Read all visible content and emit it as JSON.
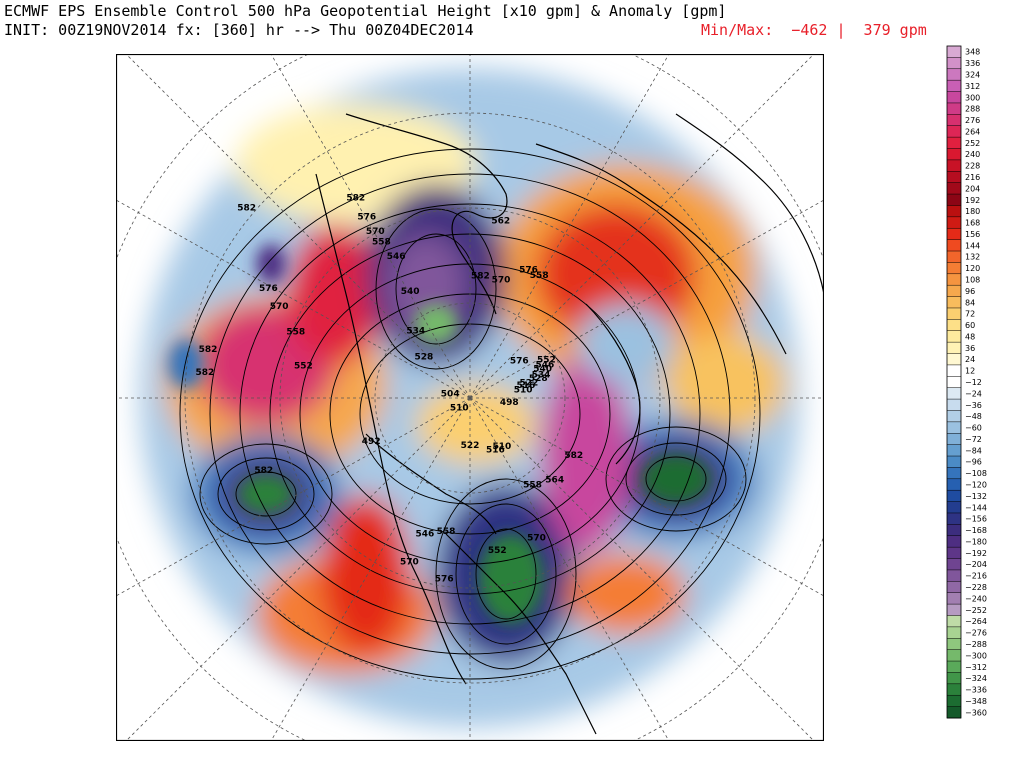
{
  "header": {
    "title_line1": "ECMWF EPS Ensemble Control 500 hPa Geopotential Height [x10 gpm] & Anomaly [gpm]",
    "title_line2": "INIT: 00Z19NOV2014 fx: [360] hr --> Thu 00Z04DEC2014",
    "minmax_label": "Min/Max:  −462 |  379 gpm"
  },
  "map": {
    "projection": "north-polar-stereographic",
    "contour_labels": [
      {
        "text": "576",
        "lat": 72,
        "lon": -125
      },
      {
        "text": "582",
        "lat": 55,
        "lon": -175
      },
      {
        "text": "570",
        "lat": 55,
        "lon": -165
      },
      {
        "text": "576",
        "lat": 50,
        "lon": -155
      },
      {
        "text": "558",
        "lat": 50,
        "lon": -150
      },
      {
        "text": "552",
        "lat": 65,
        "lon": -115
      },
      {
        "text": "546",
        "lat": 66,
        "lon": -112
      },
      {
        "text": "540",
        "lat": 67,
        "lon": -110
      },
      {
        "text": "534",
        "lat": 68,
        "lon": -106
      },
      {
        "text": "528",
        "lat": 69,
        "lon": -104
      },
      {
        "text": "522",
        "lat": 72,
        "lon": -102
      },
      {
        "text": "516",
        "lat": 73,
        "lon": -100
      },
      {
        "text": "510",
        "lat": 74,
        "lon": -96
      },
      {
        "text": "498",
        "lat": 78,
        "lon": -80
      },
      {
        "text": "562",
        "lat": 40,
        "lon": -170
      },
      {
        "text": "510",
        "lat": 72,
        "lon": -32
      },
      {
        "text": "516",
        "lat": 72,
        "lon": -25
      },
      {
        "text": "522",
        "lat": 75,
        "lon": 0
      },
      {
        "text": "510",
        "lat": 85,
        "lon": 40
      },
      {
        "text": "504",
        "lat": 84,
        "lon": 95
      },
      {
        "text": "528",
        "lat": 72,
        "lon": 130
      },
      {
        "text": "534",
        "lat": 65,
        "lon": 140
      },
      {
        "text": "540",
        "lat": 55,
        "lon": 150
      },
      {
        "text": "546",
        "lat": 45,
        "lon": 152
      },
      {
        "text": "558",
        "lat": 40,
        "lon": 150
      },
      {
        "text": "570",
        "lat": 37,
        "lon": 150
      },
      {
        "text": "576",
        "lat": 33,
        "lon": 150
      },
      {
        "text": "582",
        "lat": 28,
        "lon": 150
      },
      {
        "text": "582",
        "lat": 15,
        "lon": 130
      },
      {
        "text": "582",
        "lat": 30,
        "lon": 70
      },
      {
        "text": "582",
        "lat": 20,
        "lon": 100
      },
      {
        "text": "564",
        "lat": 55,
        "lon": -45
      },
      {
        "text": "558",
        "lat": 58,
        "lon": -35
      },
      {
        "text": "582",
        "lat": 55,
        "lon": -60
      },
      {
        "text": "570",
        "lat": 45,
        "lon": -25
      },
      {
        "text": "552",
        "lat": 45,
        "lon": -10
      },
      {
        "text": "558",
        "lat": 50,
        "lon": 10
      },
      {
        "text": "546",
        "lat": 48,
        "lon": 18
      },
      {
        "text": "576",
        "lat": 38,
        "lon": 8
      },
      {
        "text": "570",
        "lat": 40,
        "lon": 20
      },
      {
        "text": "492",
        "lat": 58,
        "lon": 65
      },
      {
        "text": "552",
        "lat": 42,
        "lon": 100
      },
      {
        "text": "558",
        "lat": 38,
        "lon": 110
      },
      {
        "text": "570",
        "lat": 32,
        "lon": 115
      },
      {
        "text": "576",
        "lat": 28,
        "lon": 118
      },
      {
        "text": "582",
        "lat": 20,
        "lon": 95
      }
    ]
  },
  "colorbar": {
    "labels": [
      "348",
      "336",
      "324",
      "312",
      "300",
      "288",
      "276",
      "264",
      "252",
      "240",
      "228",
      "216",
      "204",
      "192",
      "180",
      "168",
      "156",
      "144",
      "132",
      "120",
      "108",
      "96",
      "84",
      "72",
      "60",
      "48",
      "36",
      "24",
      "12",
      "−12",
      "−24",
      "−36",
      "−48",
      "−60",
      "−72",
      "−84",
      "−96",
      "−108",
      "−120",
      "−132",
      "−144",
      "−156",
      "−168",
      "−180",
      "−192",
      "−204",
      "−216",
      "−228",
      "−240",
      "−252",
      "−264",
      "−276",
      "−288",
      "−300",
      "−312",
      "−324",
      "−336",
      "−348",
      "−360"
    ],
    "colors": [
      "#d8a9d3",
      "#d291c9",
      "#cc78bf",
      "#c95fb5",
      "#c8479e",
      "#cf3b87",
      "#d7306f",
      "#dd2656",
      "#e0203f",
      "#d91830",
      "#c81226",
      "#b60d20",
      "#a1091a",
      "#8c0515",
      "#ba1010",
      "#cf1b14",
      "#e42a18",
      "#ef4a20",
      "#f2652b",
      "#f47d34",
      "#f59440",
      "#f6a84d",
      "#f8bc5d",
      "#fbcf70",
      "#fde088",
      "#feeb9e",
      "#fff2b5",
      "#fff8d2",
      "#ffffff",
      "#ffffff",
      "#dce9f3",
      "#c8dcee",
      "#b2cfe7",
      "#9bc1e0",
      "#80b0d8",
      "#659fd0",
      "#4b8bc6",
      "#3574bc",
      "#2660b1",
      "#1f4ca1",
      "#233d8f",
      "#2e3384",
      "#3c2d7e",
      "#4e2e82",
      "#5e3688",
      "#6f4491",
      "#80569b",
      "#9068a5",
      "#a27fb1",
      "#b69bc2",
      "#bfdca7",
      "#a8d392",
      "#8fc77e",
      "#75b96b",
      "#5aa95a",
      "#419649",
      "#2b813b",
      "#1c6c31",
      "#145a2a"
    ]
  }
}
